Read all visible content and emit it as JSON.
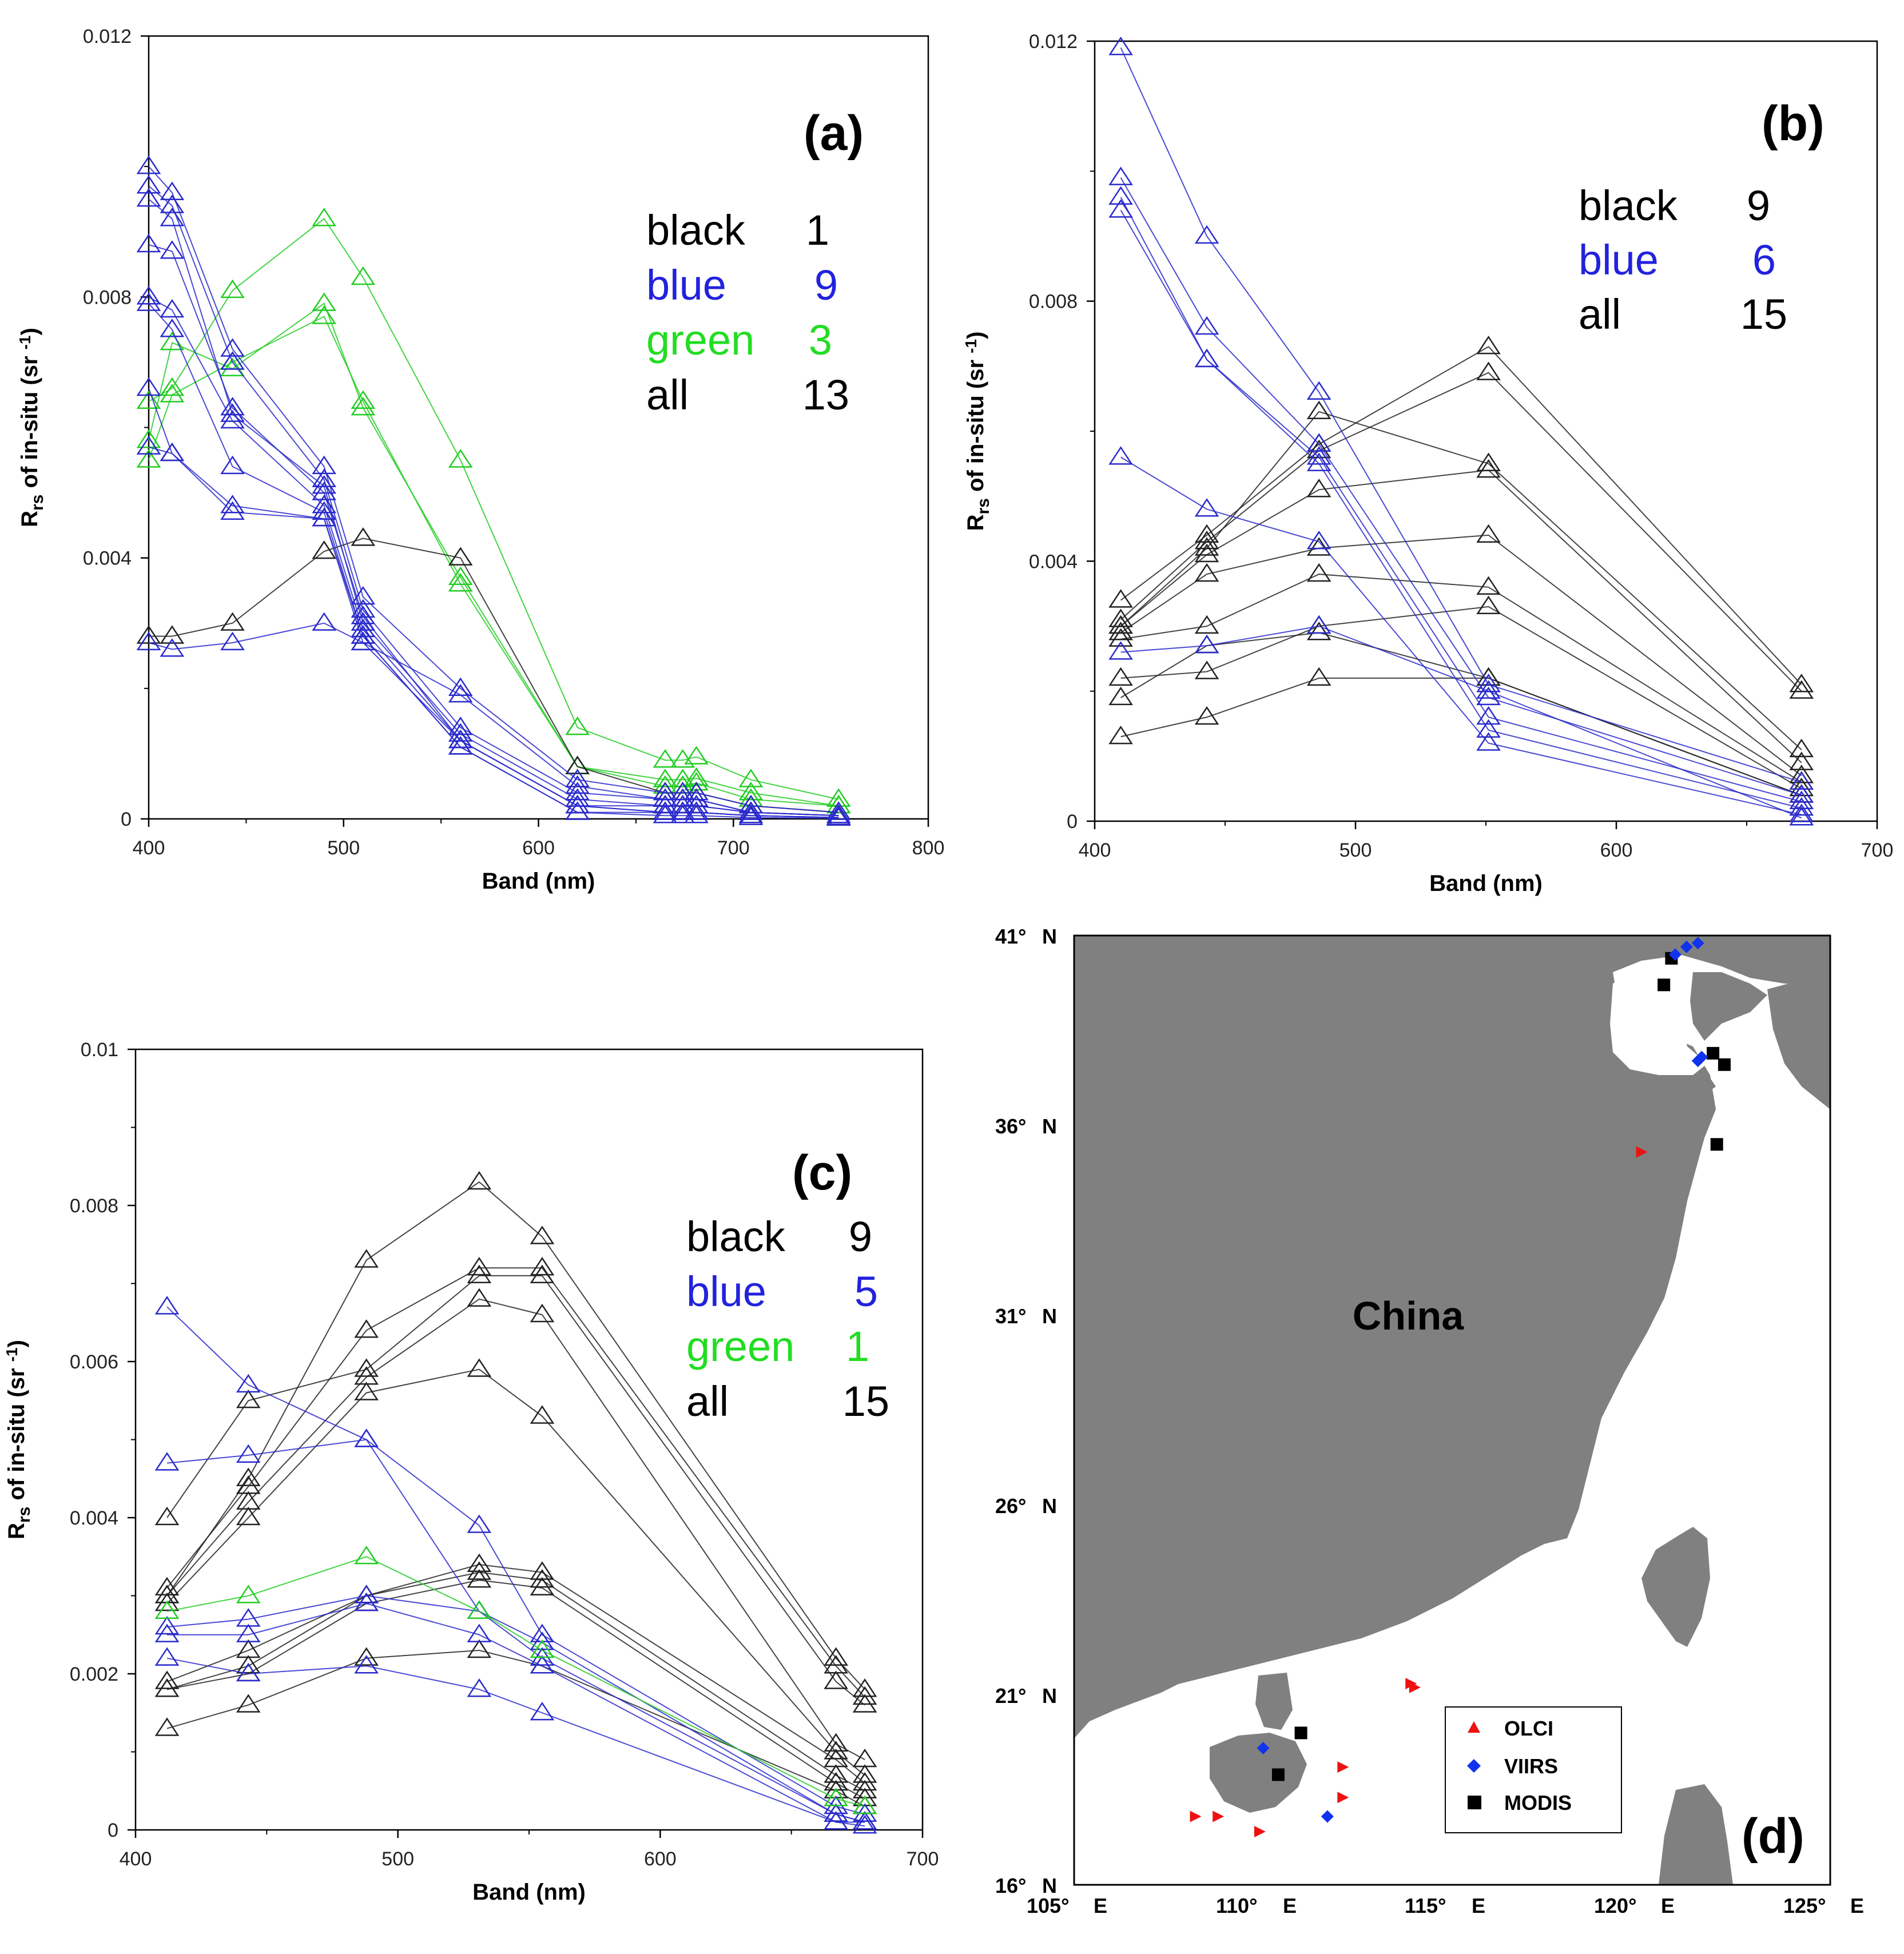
{
  "chart_data": [
    {
      "id": "a",
      "type": "line",
      "panel_label": "(a)",
      "xlabel": "Band (nm)",
      "ylabel": {
        "main": "R",
        "sub": "rs",
        "rest": " of in-situ (sr ",
        "sup": "-1",
        "end": ")"
      },
      "xlim": [
        400,
        800
      ],
      "ylim": [
        0,
        0.012
      ],
      "xticks": [
        400,
        500,
        600,
        700,
        800
      ],
      "yticks": [
        0,
        0.004,
        0.008,
        0.012
      ],
      "ytick_labels": [
        "0",
        "0.004",
        "0.008",
        "0.012"
      ],
      "legend": [
        {
          "label": "black",
          "count": "1",
          "color": "#000000"
        },
        {
          "label": "blue",
          "count": "9",
          "color": "#2222dd"
        },
        {
          "label": "green",
          "count": "3",
          "color": "#22dd22"
        },
        {
          "label": "all",
          "count": "13",
          "color": "#000000"
        }
      ],
      "bands": [
        400,
        412,
        443,
        490,
        510,
        560,
        620,
        665,
        674,
        681,
        709,
        754
      ],
      "series": [
        {
          "color": "#22cc22",
          "values": [
            0.0064,
            0.0066,
            0.0081,
            0.0092,
            0.0083,
            0.0055,
            0.0014,
            0.0009,
            0.0009,
            0.00095,
            0.0006,
            0.0003
          ]
        },
        {
          "color": "#22cc22",
          "values": [
            0.0058,
            0.0073,
            0.0069,
            0.0079,
            0.0063,
            0.0037,
            0.0008,
            0.0006,
            0.0006,
            0.00062,
            0.0004,
            0.0002
          ]
        },
        {
          "color": "#22cc22",
          "values": [
            0.0055,
            0.0065,
            0.007,
            0.0077,
            0.0064,
            0.0036,
            0.0008,
            0.0005,
            0.0005,
            0.00055,
            0.0003,
            0.0002
          ]
        },
        {
          "color": "#222222",
          "values": [
            0.0028,
            0.0028,
            0.003,
            0.0041,
            0.0043,
            0.004,
            0.0008,
            0.0004,
            0.0004,
            0.0004,
            0.0002,
            0.0001
          ]
        },
        {
          "color": "#2a2acc",
          "values": [
            0.01,
            0.0096,
            0.0072,
            0.0054,
            0.0034,
            0.002,
            0.0006,
            0.0004,
            0.0004,
            0.0004,
            0.0002,
            0.0001
          ]
        },
        {
          "color": "#2a2acc",
          "values": [
            0.0097,
            0.0094,
            0.007,
            0.0052,
            0.0032,
            0.0014,
            0.0004,
            0.0003,
            0.0003,
            0.0003,
            0.0001,
            5e-05
          ]
        },
        {
          "color": "#2a2acc",
          "values": [
            0.0095,
            0.0092,
            0.0062,
            0.0051,
            0.003,
            0.0013,
            0.0003,
            0.0002,
            0.0002,
            0.0002,
            0.0001,
            5e-05
          ]
        },
        {
          "color": "#2a2acc",
          "values": [
            0.0088,
            0.0087,
            0.0063,
            0.005,
            0.0031,
            0.0012,
            0.0002,
            0.0002,
            0.0002,
            0.0002,
            0.0001,
            5e-05
          ]
        },
        {
          "color": "#2a2acc",
          "values": [
            0.008,
            0.0078,
            0.0061,
            0.0048,
            0.0029,
            0.0012,
            0.0002,
            0.0001,
            0.0001,
            0.0001,
            5e-05,
            2e-05
          ]
        },
        {
          "color": "#2a2acc",
          "values": [
            0.0079,
            0.0075,
            0.0054,
            0.0047,
            0.0028,
            0.0011,
            0.0001,
            0.0001,
            0.0001,
            0.0001,
            5e-05,
            2e-05
          ]
        },
        {
          "color": "#2a2acc",
          "values": [
            0.0066,
            0.0056,
            0.0047,
            0.0046,
            0.0028,
            0.0011,
            0.0001,
            5e-05,
            5e-05,
            5e-05,
            2e-05,
            1e-05
          ]
        },
        {
          "color": "#2a2acc",
          "values": [
            0.0057,
            0.0056,
            0.0048,
            0.0046,
            0.0027,
            0.0012,
            0.0002,
            0.0001,
            0.0001,
            0.0001,
            5e-05,
            2e-05
          ]
        },
        {
          "color": "#2a2acc",
          "values": [
            0.0027,
            0.0026,
            0.0027,
            0.003,
            0.0027,
            0.0019,
            0.0005,
            0.0003,
            0.0003,
            0.0003,
            0.0001,
            5e-05
          ]
        }
      ]
    },
    {
      "id": "b",
      "type": "line",
      "panel_label": "(b)",
      "xlabel": "Band (nm)",
      "ylabel": {
        "main": "R",
        "sub": "rs",
        "rest": " of in-situ (sr ",
        "sup": "-1",
        "end": ")"
      },
      "xlim": [
        400,
        700
      ],
      "ylim": [
        0,
        0.012
      ],
      "xticks": [
        400,
        500,
        600,
        700
      ],
      "yticks": [
        0,
        0.004,
        0.008,
        0.012
      ],
      "ytick_labels": [
        "0",
        "0.004",
        "0.008",
        "0.012"
      ],
      "legend": [
        {
          "label": "black",
          "count": "9",
          "color": "#000000"
        },
        {
          "label": "blue",
          "count": "6",
          "color": "#2222dd"
        },
        {
          "label": "all",
          "count": "15",
          "color": "#000000"
        }
      ],
      "bands": [
        410,
        443,
        486,
        551,
        671
      ],
      "series": [
        {
          "color": "#222222",
          "values": [
            0.0034,
            0.0044,
            0.0058,
            0.0073,
            0.0021
          ]
        },
        {
          "color": "#222222",
          "values": [
            0.0031,
            0.0043,
            0.0057,
            0.0069,
            0.002
          ]
        },
        {
          "color": "#222222",
          "values": [
            0.003,
            0.0042,
            0.0063,
            0.0055,
            0.0011
          ]
        },
        {
          "color": "#222222",
          "values": [
            0.003,
            0.0041,
            0.0051,
            0.0054,
            0.0009
          ]
        },
        {
          "color": "#222222",
          "values": [
            0.0029,
            0.0038,
            0.0042,
            0.0044,
            0.0007
          ]
        },
        {
          "color": "#222222",
          "values": [
            0.0028,
            0.003,
            0.0038,
            0.0036,
            0.0006
          ]
        },
        {
          "color": "#222222",
          "values": [
            0.0022,
            0.0023,
            0.003,
            0.0033,
            0.0005
          ]
        },
        {
          "color": "#222222",
          "values": [
            0.0019,
            0.0027,
            0.0029,
            0.0022,
            0.0004
          ]
        },
        {
          "color": "#222222",
          "values": [
            0.0013,
            0.0016,
            0.0022,
            0.0022,
            0.0004
          ]
        },
        {
          "color": "#2a2acc",
          "values": [
            0.0119,
            0.009,
            0.0066,
            0.0021,
            0.0006
          ]
        },
        {
          "color": "#2a2acc",
          "values": [
            0.0099,
            0.0076,
            0.0058,
            0.0019,
            0.0004
          ]
        },
        {
          "color": "#2a2acc",
          "values": [
            0.0096,
            0.0071,
            0.0056,
            0.0016,
            0.0003
          ]
        },
        {
          "color": "#2a2acc",
          "values": [
            0.0094,
            0.0071,
            0.0055,
            0.0014,
            0.0002
          ]
        },
        {
          "color": "#2a2acc",
          "values": [
            0.0056,
            0.0048,
            0.0043,
            0.0012,
            0.0001
          ]
        },
        {
          "color": "#2a2acc",
          "values": [
            0.0026,
            0.0027,
            0.003,
            0.002,
            5e-05
          ]
        }
      ]
    },
    {
      "id": "c",
      "type": "line",
      "panel_label": "(c)",
      "xlabel": "Band (nm)",
      "ylabel": {
        "main": "R",
        "sub": "rs",
        "rest": " of in-situ (sr ",
        "sup": "-1",
        "end": ")"
      },
      "xlim": [
        400,
        700
      ],
      "ylim": [
        0,
        0.01
      ],
      "xticks": [
        400,
        500,
        600,
        700
      ],
      "yticks": [
        0,
        0.002,
        0.004,
        0.006,
        0.008,
        0.01
      ],
      "ytick_labels": [
        "0",
        "0.002",
        "0.004",
        "0.006",
        "0.008",
        "0.01"
      ],
      "legend": [
        {
          "label": "black",
          "count": "9",
          "color": "#000000"
        },
        {
          "label": "blue",
          "count": "5",
          "color": "#2222dd"
        },
        {
          "label": "green",
          "count": "1",
          "color": "#22dd22"
        },
        {
          "label": "all",
          "count": "15",
          "color": "#000000"
        }
      ],
      "bands": [
        412,
        443,
        488,
        531,
        555,
        667,
        678
      ],
      "series": [
        {
          "color": "#222222",
          "values": [
            0.003,
            0.0045,
            0.0073,
            0.0083,
            0.0076,
            0.0022,
            0.0018
          ]
        },
        {
          "color": "#222222",
          "values": [
            0.0031,
            0.0044,
            0.0064,
            0.0072,
            0.0072,
            0.0021,
            0.0017
          ]
        },
        {
          "color": "#222222",
          "values": [
            0.004,
            0.0055,
            0.0059,
            0.0071,
            0.0071,
            0.0019,
            0.0016
          ]
        },
        {
          "color": "#222222",
          "values": [
            0.003,
            0.0042,
            0.0058,
            0.0068,
            0.0066,
            0.0011,
            0.0009
          ]
        },
        {
          "color": "#222222",
          "values": [
            0.0029,
            0.004,
            0.0056,
            0.0059,
            0.0053,
            0.001,
            0.0007
          ]
        },
        {
          "color": "#222222",
          "values": [
            0.0019,
            0.0023,
            0.003,
            0.0034,
            0.0033,
            0.0009,
            0.0006
          ]
        },
        {
          "color": "#222222",
          "values": [
            0.0018,
            0.0021,
            0.003,
            0.0033,
            0.0032,
            0.0007,
            0.0005
          ]
        },
        {
          "color": "#222222",
          "values": [
            0.0018,
            0.002,
            0.0029,
            0.0032,
            0.0031,
            0.0006,
            0.0004
          ]
        },
        {
          "color": "#222222",
          "values": [
            0.0013,
            0.0016,
            0.0022,
            0.0023,
            0.0021,
            0.0005,
            0.0003
          ]
        },
        {
          "color": "#2a2acc",
          "values": [
            0.0067,
            0.0057,
            0.005,
            0.0039,
            0.0025,
            0.0003,
            0.0002
          ]
        },
        {
          "color": "#2a2acc",
          "values": [
            0.0047,
            0.0048,
            0.005,
            0.0028,
            0.0024,
            0.0002,
            0.0001
          ]
        },
        {
          "color": "#2a2acc",
          "values": [
            0.0026,
            0.0027,
            0.003,
            0.0028,
            0.0022,
            0.0002,
            0.0001
          ]
        },
        {
          "color": "#2a2acc",
          "values": [
            0.0025,
            0.0025,
            0.0029,
            0.0025,
            0.0021,
            0.0001,
            0.0001
          ]
        },
        {
          "color": "#2a2acc",
          "values": [
            0.0022,
            0.002,
            0.0021,
            0.0018,
            0.0015,
            0.0001,
            5e-05
          ]
        },
        {
          "color": "#22cc22",
          "values": [
            0.0028,
            0.003,
            0.0035,
            0.0028,
            0.0023,
            0.0004,
            0.0003
          ]
        }
      ]
    }
  ],
  "map": {
    "panel_label": "(d)",
    "land_label": "China",
    "lon_ticks": [
      "105°",
      "110°",
      "115°",
      "120°",
      "125°"
    ],
    "lon_suffix": "E",
    "lat_ticks": [
      "16°",
      "21°",
      "26°",
      "31°",
      "36°",
      "41°"
    ],
    "lat_suffix": "N",
    "lon_range": [
      105,
      125
    ],
    "lat_range": [
      16,
      41
    ],
    "land_color": "#808080",
    "legend": [
      {
        "label": "OLCI",
        "color": "#ee1111",
        "shape": "triangle"
      },
      {
        "label": "VIIRS",
        "color": "#1133ee",
        "shape": "diamond"
      },
      {
        "label": "MODIS",
        "color": "#000000",
        "shape": "square"
      }
    ],
    "points": {
      "modis": [
        [
          120.8,
          40.4
        ],
        [
          120.6,
          39.7
        ],
        [
          121.9,
          37.9
        ],
        [
          122.2,
          37.6
        ],
        [
          122.0,
          35.5
        ],
        [
          110.4,
          18.9
        ],
        [
          111.0,
          20.0
        ]
      ],
      "viirs": [
        [
          120.9,
          40.5
        ],
        [
          121.2,
          40.7
        ],
        [
          121.5,
          40.8
        ],
        [
          121.6,
          37.8
        ],
        [
          121.5,
          37.7
        ],
        [
          110.0,
          19.6
        ],
        [
          111.7,
          17.8
        ]
      ],
      "olci": [
        [
          120.0,
          35.3
        ],
        [
          114.0,
          21.2
        ],
        [
          113.9,
          21.3
        ],
        [
          112.1,
          19.1
        ],
        [
          112.1,
          18.3
        ],
        [
          108.2,
          17.8
        ],
        [
          108.8,
          17.8
        ],
        [
          109.9,
          17.4
        ]
      ]
    }
  }
}
